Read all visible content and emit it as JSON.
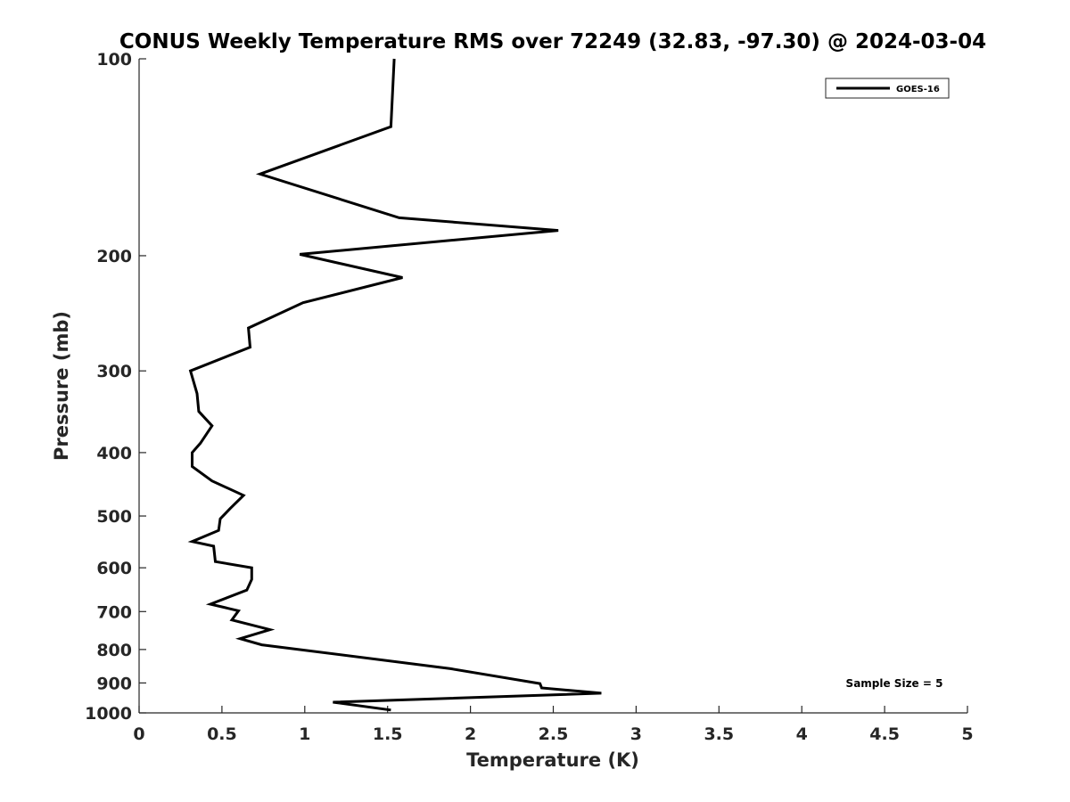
{
  "chart_data": {
    "type": "line",
    "title": "CONUS Weekly Temperature RMS over 72249 (32.83, -97.30) @ 2024-03-04",
    "xlabel": "Temperature (K)",
    "ylabel": "Pressure (mb)",
    "xlim": [
      0,
      5
    ],
    "ylim": [
      100,
      1000
    ],
    "y_scale": "log",
    "y_reversed": true,
    "xticks": [
      0,
      0.5,
      1,
      1.5,
      2,
      2.5,
      3,
      3.5,
      4,
      4.5,
      5
    ],
    "xtick_labels": [
      "0",
      "0.5",
      "1",
      "1.5",
      "2",
      "2.5",
      "3",
      "3.5",
      "4",
      "4.5",
      "5"
    ],
    "yticks": [
      100,
      200,
      300,
      400,
      500,
      600,
      700,
      800,
      900,
      1000
    ],
    "ytick_labels": [
      "100",
      "200",
      "300",
      "400",
      "500",
      "600",
      "700",
      "800",
      "900",
      "1000"
    ],
    "grid": false,
    "legend_position": "top-right",
    "series": [
      {
        "name": "GOES-16",
        "color": "#000000",
        "x": [
          1.54,
          1.52,
          0.73,
          1.57,
          2.53,
          0.97,
          1.59,
          0.99,
          0.66,
          0.67,
          0.31,
          0.35,
          0.36,
          0.44,
          0.37,
          0.32,
          0.32,
          0.44,
          0.63,
          0.55,
          0.49,
          0.48,
          0.32,
          0.45,
          0.46,
          0.68,
          0.68,
          0.65,
          0.43,
          0.6,
          0.56,
          0.79,
          0.61,
          0.74,
          1.88,
          2.42,
          2.43,
          2.79,
          1.17,
          1.52
        ],
        "y": [
          100,
          127,
          150,
          175,
          183,
          199,
          216,
          236,
          258,
          276,
          300,
          325,
          346,
          364,
          387,
          400,
          420,
          442,
          465,
          487,
          505,
          526,
          547,
          556,
          587,
          600,
          625,
          649,
          682,
          698,
          721,
          746,
          770,
          787,
          856,
          902,
          916,
          933,
          963,
          990
        ]
      }
    ],
    "legend": {
      "entries": [
        "GOES-16"
      ]
    },
    "annotations": [
      "Sample Size = 5"
    ]
  }
}
